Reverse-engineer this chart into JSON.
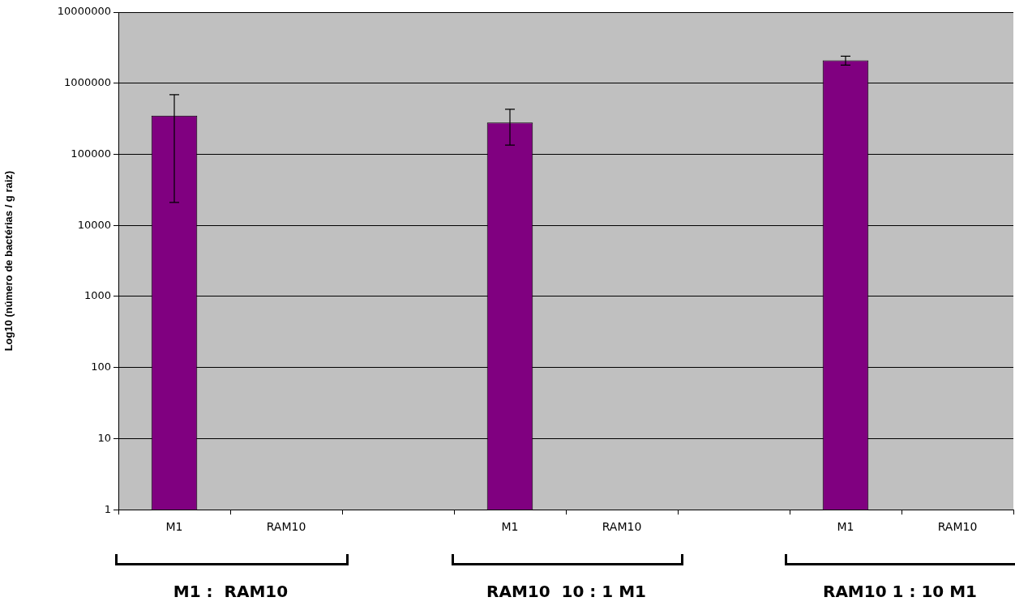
{
  "chart_data": {
    "type": "bar",
    "ylabel": "Log10 (número de bactérias / g raiz)",
    "categories": [
      "M1",
      "RAM10",
      null,
      "M1",
      "RAM10",
      null,
      "M1",
      "RAM10"
    ],
    "values": [
      350000,
      null,
      null,
      280000,
      null,
      null,
      2100000,
      null
    ],
    "errors": [
      [
        21000,
        690000
      ],
      null,
      null,
      [
        135000,
        430000
      ],
      null,
      null,
      [
        1800000,
        2400000
      ],
      null
    ],
    "color": "#800080",
    "log": "y",
    "ylim": [
      1,
      10000000
    ],
    "yticks": [
      1,
      10,
      100,
      1000,
      10000,
      100000,
      1000000,
      10000000
    ],
    "grid": "y",
    "legend": false,
    "annotations": [
      "M1 :  RAM10",
      "RAM10  10 : 1 M1",
      "RAM10 1 : 10 M1"
    ]
  }
}
